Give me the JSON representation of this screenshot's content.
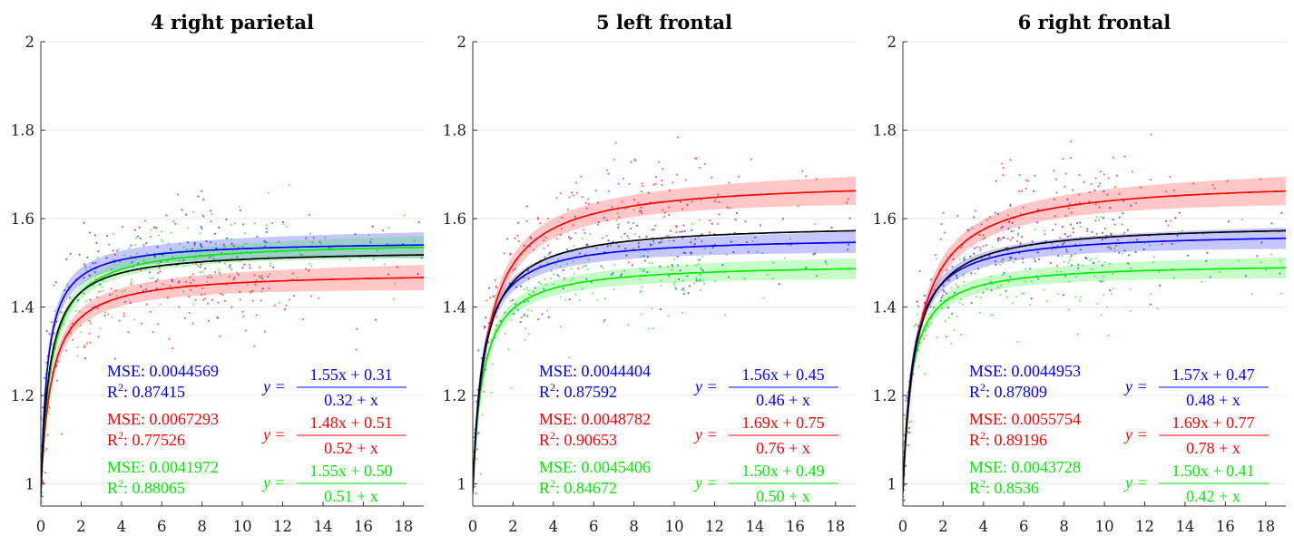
{
  "chart_data": [
    {
      "type": "scatter",
      "title": "4 right parietal",
      "xlim": [
        0,
        19
      ],
      "ylim": [
        0.95,
        2
      ],
      "x_ticks": [
        0,
        2,
        4,
        6,
        8,
        10,
        12,
        14,
        16,
        18
      ],
      "y_ticks": [
        1,
        1.2,
        1.4,
        1.6,
        1.8,
        2
      ],
      "y_tick_labels": [
        "1",
        "1.2",
        "1.4",
        "1.6",
        "1.8",
        "2"
      ],
      "grid": "horizontal",
      "series": [
        {
          "color": "#0000ff",
          "fit": {
            "a": 1.55,
            "b": 0.31,
            "c": 0.32
          },
          "eq_num": "1.55x + 0.31",
          "eq_den": "0.32 + x",
          "mse_label": "MSE: 0.0044569",
          "r2_label": "0.87415",
          "band": 0.018,
          "scatter_sd": 0.055
        },
        {
          "color": "#ff0000",
          "fit": {
            "a": 1.48,
            "b": 0.51,
            "c": 0.52
          },
          "eq_num": "1.48x + 0.51",
          "eq_den": "0.52 + x",
          "mse_label": "MSE: 0.0067293",
          "r2_label": "0.77526",
          "band": 0.018,
          "scatter_sd": 0.07
        },
        {
          "color": "#00ee00",
          "fit": {
            "a": 1.55,
            "b": 0.5,
            "c": 0.51
          },
          "eq_num": "1.55x + 0.50",
          "eq_den": "0.51 + x",
          "mse_label": "MSE: 0.0041972",
          "r2_label": "0.88065",
          "band": 0.016,
          "scatter_sd": 0.055
        },
        {
          "color": "#000000",
          "fit": {
            "a": 1.53,
            "b": 0.41,
            "c": 0.42
          },
          "band": 0
        }
      ]
    },
    {
      "type": "scatter",
      "title": "5 left frontal",
      "xlim": [
        0,
        19
      ],
      "ylim": [
        0.95,
        2
      ],
      "x_ticks": [
        0,
        2,
        4,
        6,
        8,
        10,
        12,
        14,
        16,
        18
      ],
      "y_ticks": [
        1,
        1.2,
        1.4,
        1.6,
        1.8,
        2
      ],
      "y_tick_labels": [
        "1",
        "1.2",
        "1.4",
        "1.6",
        "1.8",
        "2"
      ],
      "grid": "horizontal",
      "series": [
        {
          "color": "#0000ff",
          "fit": {
            "a": 1.56,
            "b": 0.45,
            "c": 0.46
          },
          "eq_num": "1.56x + 0.45",
          "eq_den": "0.46 + x",
          "mse_label": "MSE: 0.0044404",
          "r2_label": "0.87592",
          "band": 0.015,
          "scatter_sd": 0.06
        },
        {
          "color": "#ff0000",
          "fit": {
            "a": 1.69,
            "b": 0.75,
            "c": 0.76
          },
          "eq_num": "1.69x + 0.75",
          "eq_den": "0.76 + x",
          "mse_label": "MSE: 0.0048782",
          "r2_label": "0.90653",
          "band": 0.02,
          "scatter_sd": 0.06
        },
        {
          "color": "#00ee00",
          "fit": {
            "a": 1.5,
            "b": 0.49,
            "c": 0.5
          },
          "eq_num": "1.50x + 0.49",
          "eq_den": "0.50 + x",
          "mse_label": "MSE: 0.0045406",
          "r2_label": "0.84672",
          "band": 0.015,
          "scatter_sd": 0.06
        },
        {
          "color": "#000000",
          "fit": {
            "a": 1.59,
            "b": 0.55,
            "c": 0.56
          },
          "band": 0
        }
      ]
    },
    {
      "type": "scatter",
      "title": "6 right frontal",
      "xlim": [
        0,
        19
      ],
      "ylim": [
        0.95,
        2
      ],
      "x_ticks": [
        0,
        2,
        4,
        6,
        8,
        10,
        12,
        14,
        16,
        18
      ],
      "y_ticks": [
        1,
        1.2,
        1.4,
        1.6,
        1.8,
        2
      ],
      "y_tick_labels": [
        "1",
        "1.2",
        "1.4",
        "1.6",
        "1.8",
        "2"
      ],
      "grid": "horizontal",
      "series": [
        {
          "color": "#0000ff",
          "fit": {
            "a": 1.57,
            "b": 0.47,
            "c": 0.48
          },
          "eq_num": "1.57x + 0.47",
          "eq_den": "0.48 + x",
          "mse_label": "MSE: 0.0044953",
          "r2_label": "0.87809",
          "band": 0.015,
          "scatter_sd": 0.06
        },
        {
          "color": "#ff0000",
          "fit": {
            "a": 1.69,
            "b": 0.77,
            "c": 0.78
          },
          "eq_num": "1.69x + 0.77",
          "eq_den": "0.78 + x",
          "mse_label": "MSE: 0.0055754",
          "r2_label": "0.89196",
          "band": 0.02,
          "scatter_sd": 0.065
        },
        {
          "color": "#00ee00",
          "fit": {
            "a": 1.5,
            "b": 0.41,
            "c": 0.42
          },
          "eq_num": "1.50x + 0.41",
          "eq_den": "0.42 + x",
          "mse_label": "MSE: 0.0043728",
          "r2_label": "0.8536",
          "band": 0.015,
          "scatter_sd": 0.06
        },
        {
          "color": "#000000",
          "fit": {
            "a": 1.59,
            "b": 0.55,
            "c": 0.56
          },
          "band": 0
        }
      ]
    }
  ]
}
